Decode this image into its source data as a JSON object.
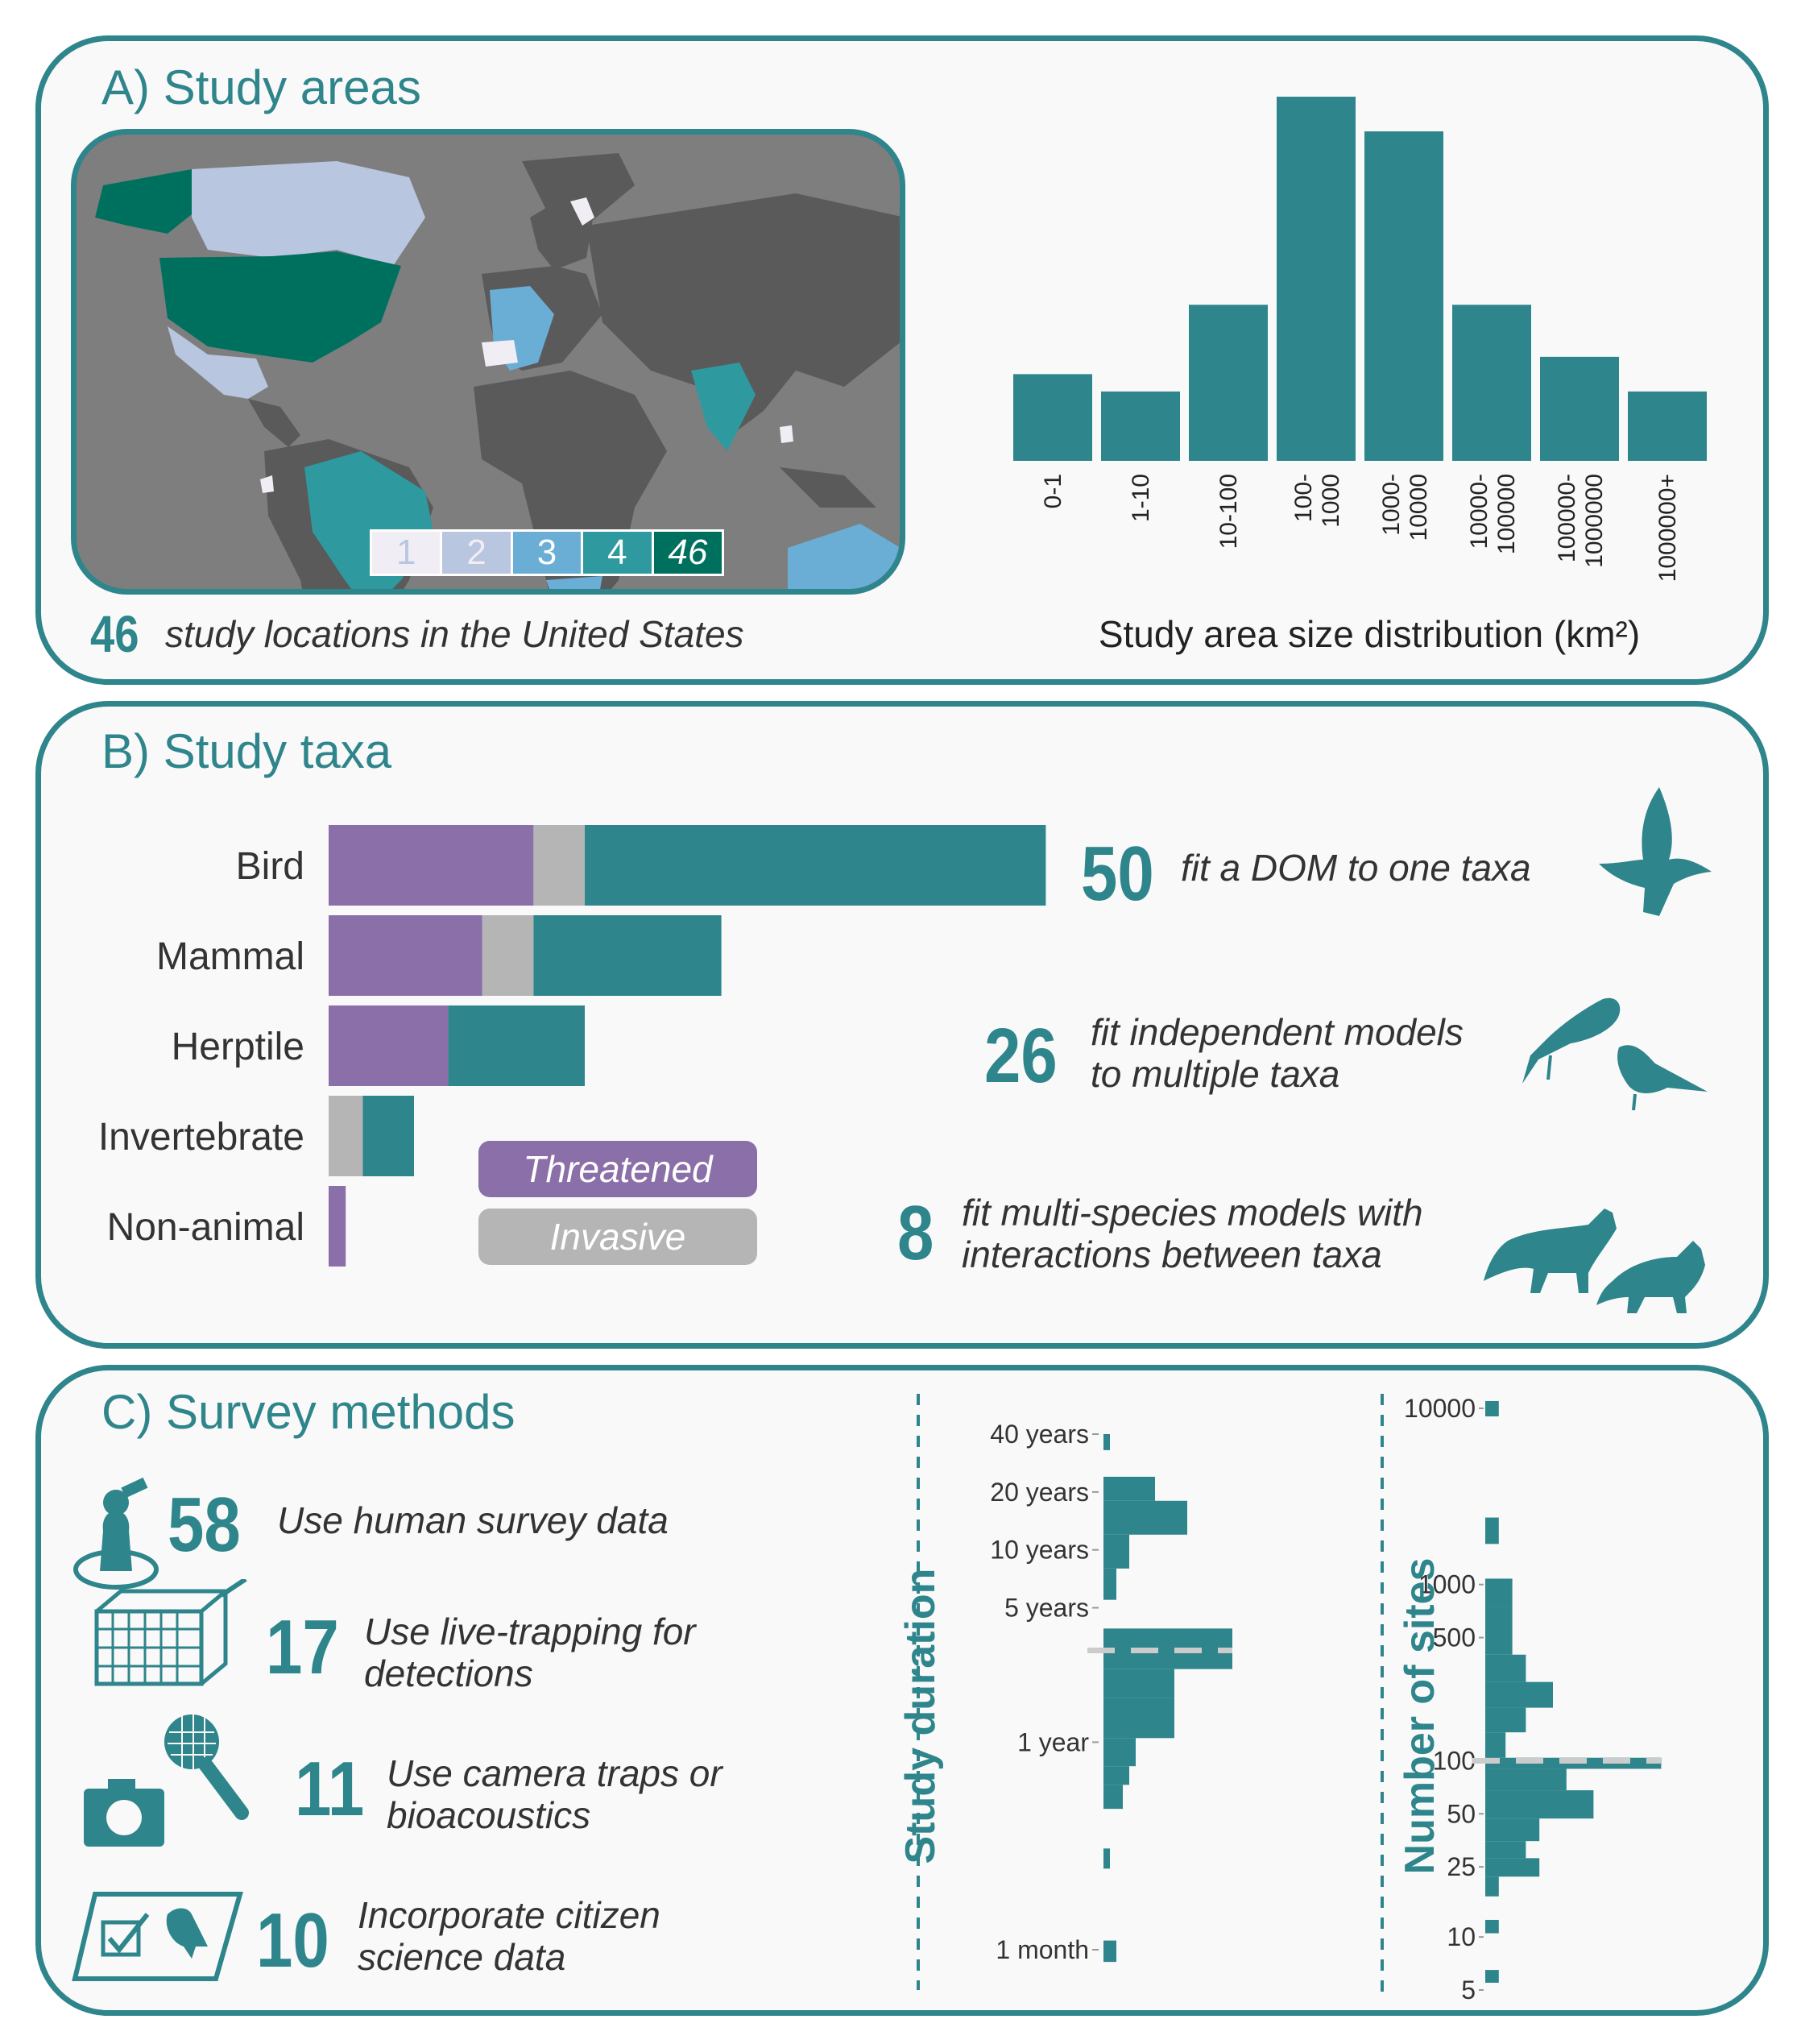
{
  "panelA": {
    "title": "A) Study areas",
    "legend": [
      "1",
      "2",
      "3",
      "4",
      "46"
    ],
    "legend_colors": [
      "#f1edf5",
      "#b9c6e0",
      "#6aaed6",
      "#2e9aa0",
      "#00705e"
    ],
    "stat_number": "46",
    "stat_text": "study locations in the United States",
    "histogram": {
      "type": "bar",
      "xlabel": "Study area size distribution (km²)",
      "categories": [
        "0-1",
        "1-10",
        "10-100",
        "100-\n1000",
        "1000-\n10000",
        "10000-\n100000",
        "100000-\n1000000",
        "1000000+"
      ],
      "values": [
        5,
        4,
        9,
        21,
        19,
        9,
        6,
        4
      ]
    }
  },
  "panelB": {
    "title": "B) Study taxa",
    "chart_data": {
      "type": "bar",
      "orientation": "horizontal",
      "stacked": true,
      "categories": [
        "Bird",
        "Mammal",
        "Herptile",
        "Invertebrate",
        "Non-animal"
      ],
      "series": [
        {
          "name": "Threatened",
          "color": "#8b6fa8",
          "values": [
            12,
            9,
            7,
            0,
            1
          ]
        },
        {
          "name": "Invasive",
          "color": "#b5b5b5",
          "values": [
            3,
            3,
            0,
            2,
            0
          ]
        },
        {
          "name": "",
          "color": "#2e858b",
          "values": [
            27,
            11,
            8,
            3,
            0
          ]
        }
      ]
    },
    "legend_threatened": "Threatened",
    "legend_invasive": "Invasive",
    "stats": [
      {
        "number": "50",
        "line1": "fit a DOM to one taxa",
        "line2": ""
      },
      {
        "number": "26",
        "line1": "fit independent models",
        "line2": "to multiple taxa"
      },
      {
        "number": "8",
        "line1": "fit multi-species models with",
        "line2": "interactions between taxa"
      }
    ]
  },
  "panelC": {
    "title": "C) Survey methods",
    "methods": [
      {
        "number": "58",
        "line1": "Use human survey data",
        "line2": "",
        "icon": "person-binoculars-icon"
      },
      {
        "number": "17",
        "line1": "Use live-trapping for",
        "line2": "detections",
        "icon": "live-trap-icon"
      },
      {
        "number": "11",
        "line1": "Use camera traps or",
        "line2": "bioacoustics",
        "icon": "camera-microphone-icon"
      },
      {
        "number": "10",
        "line1": "Incorporate citizen",
        "line2": "science data",
        "icon": "checklist-bird-icon"
      }
    ],
    "duration": {
      "title": "Study duration",
      "tick_labels": [
        "40 years",
        "20 years",
        "10 years",
        "5 years",
        "1 year",
        "1 month"
      ],
      "tick_values_years": [
        40,
        20,
        10,
        5,
        1,
        0.0833
      ],
      "median_years": 3,
      "bins": [
        {
          "lo": 33,
          "hi": 40,
          "count": 1
        },
        {
          "lo": 18,
          "hi": 24,
          "count": 8
        },
        {
          "lo": 12,
          "hi": 18,
          "count": 13
        },
        {
          "lo": 8,
          "hi": 12,
          "count": 4
        },
        {
          "lo": 5.5,
          "hi": 8,
          "count": 2
        },
        {
          "lo": 2.4,
          "hi": 3.9,
          "count": 22
        },
        {
          "lo": 1.7,
          "hi": 2.4,
          "count": 11
        },
        {
          "lo": 1.05,
          "hi": 1.7,
          "count": 11
        },
        {
          "lo": 0.75,
          "hi": 1.05,
          "count": 5
        },
        {
          "lo": 0.6,
          "hi": 0.75,
          "count": 4
        },
        {
          "lo": 0.45,
          "hi": 0.6,
          "count": 3
        },
        {
          "lo": 0.22,
          "hi": 0.28,
          "count": 1
        },
        {
          "lo": 0.072,
          "hi": 0.093,
          "count": 2
        }
      ]
    },
    "sites": {
      "title": "Number of sites",
      "tick_labels": [
        "10000",
        "1000",
        "500",
        "100",
        "50",
        "25",
        "10",
        "5"
      ],
      "tick_values": [
        10000,
        1000,
        500,
        100,
        50,
        25,
        10,
        5
      ],
      "median": 100,
      "bins": [
        {
          "lo": 9000,
          "hi": 11000,
          "count": 2
        },
        {
          "lo": 1700,
          "hi": 2400,
          "count": 2
        },
        {
          "lo": 750,
          "hi": 1080,
          "count": 4
        },
        {
          "lo": 400,
          "hi": 750,
          "count": 4
        },
        {
          "lo": 280,
          "hi": 400,
          "count": 6
        },
        {
          "lo": 200,
          "hi": 280,
          "count": 10
        },
        {
          "lo": 145,
          "hi": 200,
          "count": 6
        },
        {
          "lo": 104,
          "hi": 145,
          "count": 3
        },
        {
          "lo": 90,
          "hi": 104,
          "count": 26
        },
        {
          "lo": 68,
          "hi": 90,
          "count": 12
        },
        {
          "lo": 47,
          "hi": 68,
          "count": 16
        },
        {
          "lo": 35,
          "hi": 47,
          "count": 8
        },
        {
          "lo": 28,
          "hi": 35,
          "count": 6
        },
        {
          "lo": 22,
          "hi": 28,
          "count": 8
        },
        {
          "lo": 17,
          "hi": 22,
          "count": 2
        },
        {
          "lo": 10.5,
          "hi": 12.5,
          "count": 2
        },
        {
          "lo": 5.5,
          "hi": 6.5,
          "count": 2
        }
      ]
    }
  }
}
